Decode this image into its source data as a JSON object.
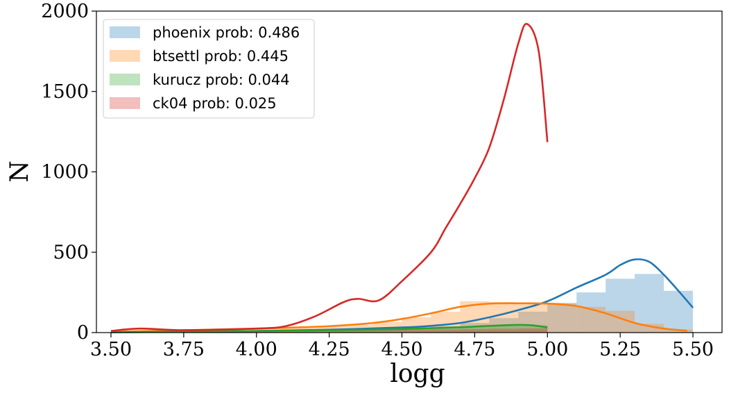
{
  "chart_data": {
    "type": "histogram+kde",
    "xlabel": "logg",
    "ylabel": "N",
    "xlim": [
      3.45,
      5.6
    ],
    "ylim": [
      0,
      2000
    ],
    "xticks": [
      3.5,
      3.75,
      4.0,
      4.25,
      4.5,
      4.75,
      5.0,
      5.25,
      5.5
    ],
    "xtick_labels": [
      "3.50",
      "3.75",
      "4.00",
      "4.25",
      "4.50",
      "4.75",
      "5.00",
      "5.25",
      "5.50"
    ],
    "yticks": [
      0,
      500,
      1000,
      1500,
      2000
    ],
    "ytick_labels": [
      "0",
      "500",
      "1000",
      "1500",
      "2000"
    ],
    "legend_position": "top-left",
    "series": [
      {
        "name": "phoenix prob: 0.486",
        "color": "#1f77b4",
        "hist": {
          "bins": [
            3.5,
            3.6,
            3.7,
            3.8,
            3.9,
            4.0,
            4.1,
            4.2,
            4.3,
            4.4,
            4.5,
            4.6,
            4.7,
            4.8,
            4.9,
            5.0,
            5.1,
            5.2,
            5.3,
            5.4,
            5.5
          ],
          "counts": [
            3,
            3,
            4,
            5,
            6,
            8,
            10,
            12,
            15,
            20,
            28,
            40,
            60,
            90,
            130,
            185,
            250,
            335,
            365,
            260
          ]
        },
        "kde": {
          "x": [
            3.5,
            3.75,
            4.0,
            4.25,
            4.5,
            4.6,
            4.7,
            4.8,
            4.9,
            5.0,
            5.1,
            5.2,
            5.25,
            5.3,
            5.35,
            5.4,
            5.45,
            5.5
          ],
          "y": [
            2,
            5,
            10,
            18,
            32,
            42,
            60,
            95,
            140,
            195,
            280,
            360,
            420,
            455,
            440,
            360,
            260,
            155
          ]
        }
      },
      {
        "name": "btsettl prob: 0.445",
        "color": "#ff7f0e",
        "hist": {
          "bins": [
            3.5,
            3.6,
            3.7,
            3.8,
            3.9,
            4.0,
            4.1,
            4.2,
            4.3,
            4.4,
            4.5,
            4.6,
            4.7,
            4.8,
            4.9,
            5.0,
            5.1,
            5.2,
            5.3,
            5.4,
            5.5
          ],
          "counts": [
            5,
            8,
            10,
            14,
            18,
            25,
            32,
            40,
            50,
            65,
            95,
            130,
            195,
            190,
            185,
            180,
            160,
            135,
            55,
            20
          ]
        },
        "kde": {
          "x": [
            3.5,
            3.75,
            4.0,
            4.25,
            4.4,
            4.5,
            4.6,
            4.7,
            4.8,
            4.9,
            5.0,
            5.1,
            5.2,
            5.3,
            5.4,
            5.48
          ],
          "y": [
            5,
            15,
            25,
            40,
            60,
            85,
            120,
            160,
            180,
            182,
            180,
            165,
            120,
            60,
            25,
            12
          ]
        }
      },
      {
        "name": "kurucz prob: 0.044",
        "color": "#2ca02c",
        "hist": {
          "bins": [
            3.5,
            3.6,
            3.7,
            3.8,
            3.9,
            4.0,
            4.1,
            4.2,
            4.3,
            4.4,
            4.5,
            4.6,
            4.7,
            4.8,
            4.9,
            5.0
          ],
          "counts": [
            4,
            5,
            6,
            7,
            8,
            9,
            10,
            12,
            14,
            18,
            22,
            28,
            35,
            42,
            45
          ]
        },
        "kde": {
          "x": [
            3.5,
            3.75,
            4.0,
            4.25,
            4.5,
            4.7,
            4.8,
            4.9,
            4.95,
            5.0
          ],
          "y": [
            3,
            6,
            10,
            15,
            22,
            33,
            42,
            48,
            45,
            32
          ]
        }
      },
      {
        "name": "ck04 prob: 0.025",
        "color": "#d62728",
        "hist": {
          "bins": [
            3.5,
            3.6,
            3.7,
            3.8,
            3.9,
            4.0,
            4.1,
            4.2,
            4.3,
            4.4,
            4.5,
            4.6,
            4.7,
            4.8,
            4.9,
            5.0
          ],
          "counts": [
            4,
            5,
            6,
            7,
            8,
            9,
            10,
            12,
            14,
            16,
            18,
            20,
            22,
            24,
            26
          ]
        },
        "kde": {
          "x": [
            3.5,
            3.6,
            3.75,
            4.0,
            4.1,
            4.2,
            4.3,
            4.35,
            4.42,
            4.5,
            4.6,
            4.65,
            4.7,
            4.75,
            4.8,
            4.85,
            4.9,
            4.93,
            4.97,
            5.0
          ],
          "y": [
            10,
            25,
            15,
            25,
            40,
            100,
            190,
            210,
            200,
            320,
            500,
            650,
            800,
            960,
            1150,
            1450,
            1800,
            1920,
            1750,
            1185
          ]
        }
      }
    ]
  }
}
